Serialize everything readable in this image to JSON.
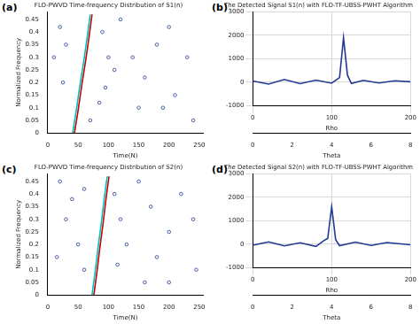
{
  "chart_data": [
    {
      "panel": "(a)",
      "type": "line",
      "title": "FLO-PWVD Time-frequency Distribution of S1(n)",
      "x_label": "Time(N)",
      "y_label": "Normalized Frequency",
      "xlim": [
        0,
        256
      ],
      "xticks": [
        0,
        50,
        100,
        150,
        200,
        250
      ],
      "ylim": [
        0,
        0.48
      ],
      "yticks": [
        0,
        0.05,
        0.1,
        0.15,
        0.2,
        0.25,
        0.3,
        0.35,
        0.4,
        0.45
      ],
      "grid": false,
      "series": [
        {
          "type": "line",
          "color": "#00bfbf",
          "line_style": "solid",
          "x": [
            41,
            47,
            53,
            59,
            65,
            70
          ],
          "values": [
            0,
            0.09,
            0.19,
            0.28,
            0.38,
            0.47
          ]
        },
        {
          "type": "line",
          "color": "#cc0000",
          "line_style": "solid",
          "x": [
            44,
            50,
            56,
            62,
            68,
            73
          ],
          "values": [
            0,
            0.09,
            0.19,
            0.28,
            0.38,
            0.47
          ]
        },
        {
          "type": "scatter",
          "color": "#1f3a93",
          "marker": "circle",
          "x": [
            20,
            30,
            25,
            10,
            90,
            100,
            110,
            120,
            140,
            160,
            180,
            200,
            210,
            230,
            240,
            150,
            85,
            95,
            70,
            190
          ],
          "values": [
            0.42,
            0.35,
            0.2,
            0.3,
            0.4,
            0.3,
            0.25,
            0.45,
            0.3,
            0.22,
            0.35,
            0.42,
            0.15,
            0.3,
            0.05,
            0.1,
            0.12,
            0.18,
            0.05,
            0.1
          ]
        }
      ]
    },
    {
      "panel": "(b)",
      "type": "line",
      "title": "The Detected Signal S1(n) with FLO-TF-UBSS-PWHT Algorithm",
      "x_label": "Rho",
      "x2_label": "Theta",
      "xlim": [
        0,
        200
      ],
      "xticks": [
        0,
        100,
        200
      ],
      "x2lim": [
        0,
        8
      ],
      "x2ticks": [
        0,
        2,
        4,
        6,
        8
      ],
      "ylim": [
        -1000,
        3000
      ],
      "yticks": [
        -1000,
        0,
        1000,
        2000,
        3000
      ],
      "grid": true,
      "series": [
        {
          "type": "line",
          "color": "#1f3a93",
          "line_style": "solid",
          "x": [
            0,
            20,
            40,
            60,
            80,
            100,
            110,
            115,
            120,
            125,
            140,
            160,
            180,
            200
          ],
          "values": [
            50,
            -80,
            120,
            -60,
            90,
            -40,
            200,
            1900,
            300,
            -50,
            80,
            -30,
            60,
            20
          ]
        }
      ]
    },
    {
      "panel": "(c)",
      "type": "line",
      "title": "FLO-PWVD Time-frequency Distribution of S2(n)",
      "x_label": "Time(N)",
      "y_label": "Normalized Frequency",
      "xlim": [
        0,
        256
      ],
      "xticks": [
        0,
        50,
        100,
        150,
        200,
        250
      ],
      "ylim": [
        0,
        0.48
      ],
      "yticks": [
        0,
        0.05,
        0.1,
        0.15,
        0.2,
        0.25,
        0.3,
        0.35,
        0.4,
        0.45
      ],
      "grid": false,
      "series": [
        {
          "type": "line",
          "color": "#00bfbf",
          "line_style": "solid",
          "x": [
            73,
            78,
            83,
            88,
            93,
            98
          ],
          "values": [
            0,
            0.09,
            0.19,
            0.28,
            0.38,
            0.47
          ]
        },
        {
          "type": "line",
          "color": "#cc0000",
          "line_style": "solid",
          "x": [
            76,
            81,
            86,
            91,
            96,
            101
          ],
          "values": [
            0,
            0.09,
            0.19,
            0.28,
            0.38,
            0.47
          ]
        },
        {
          "type": "scatter",
          "color": "#1f3a93",
          "marker": "circle",
          "x": [
            20,
            30,
            15,
            40,
            50,
            60,
            110,
            120,
            130,
            150,
            170,
            180,
            200,
            220,
            240,
            245,
            160,
            115,
            60,
            200
          ],
          "values": [
            0.45,
            0.3,
            0.15,
            0.38,
            0.2,
            0.1,
            0.4,
            0.3,
            0.2,
            0.45,
            0.35,
            0.15,
            0.25,
            0.4,
            0.3,
            0.1,
            0.05,
            0.12,
            0.42,
            0.05
          ]
        }
      ]
    },
    {
      "panel": "(d)",
      "type": "line",
      "title": "The Detected Signal S2(n) with FLO-TF-UBSS-PWHT Algorithm",
      "x_label": "Rho",
      "x2_label": "Theta",
      "xlim": [
        0,
        200
      ],
      "xticks": [
        0,
        100,
        200
      ],
      "x2lim": [
        0,
        8
      ],
      "x2ticks": [
        0,
        2,
        4,
        6,
        8
      ],
      "ylim": [
        -1000,
        3000
      ],
      "yticks": [
        -1000,
        0,
        1000,
        2000,
        3000
      ],
      "grid": true,
      "series": [
        {
          "type": "line",
          "color": "#1f3a93",
          "line_style": "solid",
          "x": [
            0,
            20,
            40,
            60,
            80,
            90,
            95,
            100,
            105,
            110,
            130,
            150,
            170,
            200
          ],
          "values": [
            -40,
            100,
            -70,
            60,
            -90,
            150,
            250,
            1600,
            200,
            -60,
            90,
            -50,
            70,
            -20
          ]
        }
      ]
    }
  ]
}
